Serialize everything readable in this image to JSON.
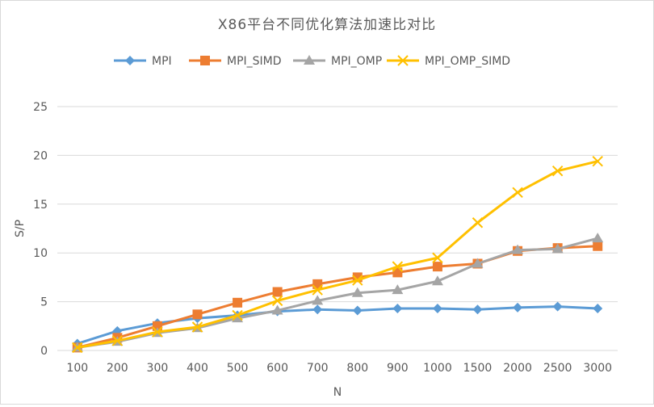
{
  "chart_data": {
    "type": "line",
    "title": "X86平台不同优化算法加速比对比",
    "xlabel": "N",
    "ylabel": "S/P",
    "ylim": [
      0,
      25
    ],
    "yticks": [
      0,
      5,
      10,
      15,
      20,
      25
    ],
    "grid": true,
    "legend_position": "top",
    "categories": [
      "100",
      "200",
      "300",
      "400",
      "500",
      "600",
      "700",
      "800",
      "900",
      "1000",
      "1500",
      "2000",
      "2500",
      "3000"
    ],
    "series": [
      {
        "name": "MPI",
        "color": "#5b9bd5",
        "marker": "diamond",
        "values": [
          0.7,
          2.0,
          2.8,
          3.3,
          3.6,
          4.0,
          4.2,
          4.1,
          4.3,
          4.3,
          4.2,
          4.4,
          4.5,
          4.3
        ]
      },
      {
        "name": "MPI_SIMD",
        "color": "#ed7d31",
        "marker": "square",
        "values": [
          0.3,
          1.3,
          2.5,
          3.7,
          4.9,
          6.0,
          6.8,
          7.5,
          8.0,
          8.6,
          8.9,
          10.2,
          10.5,
          10.7
        ]
      },
      {
        "name": "MPI_OMP",
        "color": "#a5a5a5",
        "marker": "triangle",
        "values": [
          0.3,
          0.9,
          1.8,
          2.3,
          3.3,
          4.1,
          5.1,
          5.9,
          6.2,
          7.1,
          8.9,
          10.3,
          10.4,
          11.5
        ]
      },
      {
        "name": "MPI_OMP_SIMD",
        "color": "#ffc000",
        "marker": "x",
        "values": [
          0.3,
          1.0,
          1.9,
          2.4,
          3.6,
          5.1,
          6.2,
          7.2,
          8.6,
          9.5,
          13.1,
          16.2,
          18.4,
          19.4
        ]
      }
    ]
  }
}
